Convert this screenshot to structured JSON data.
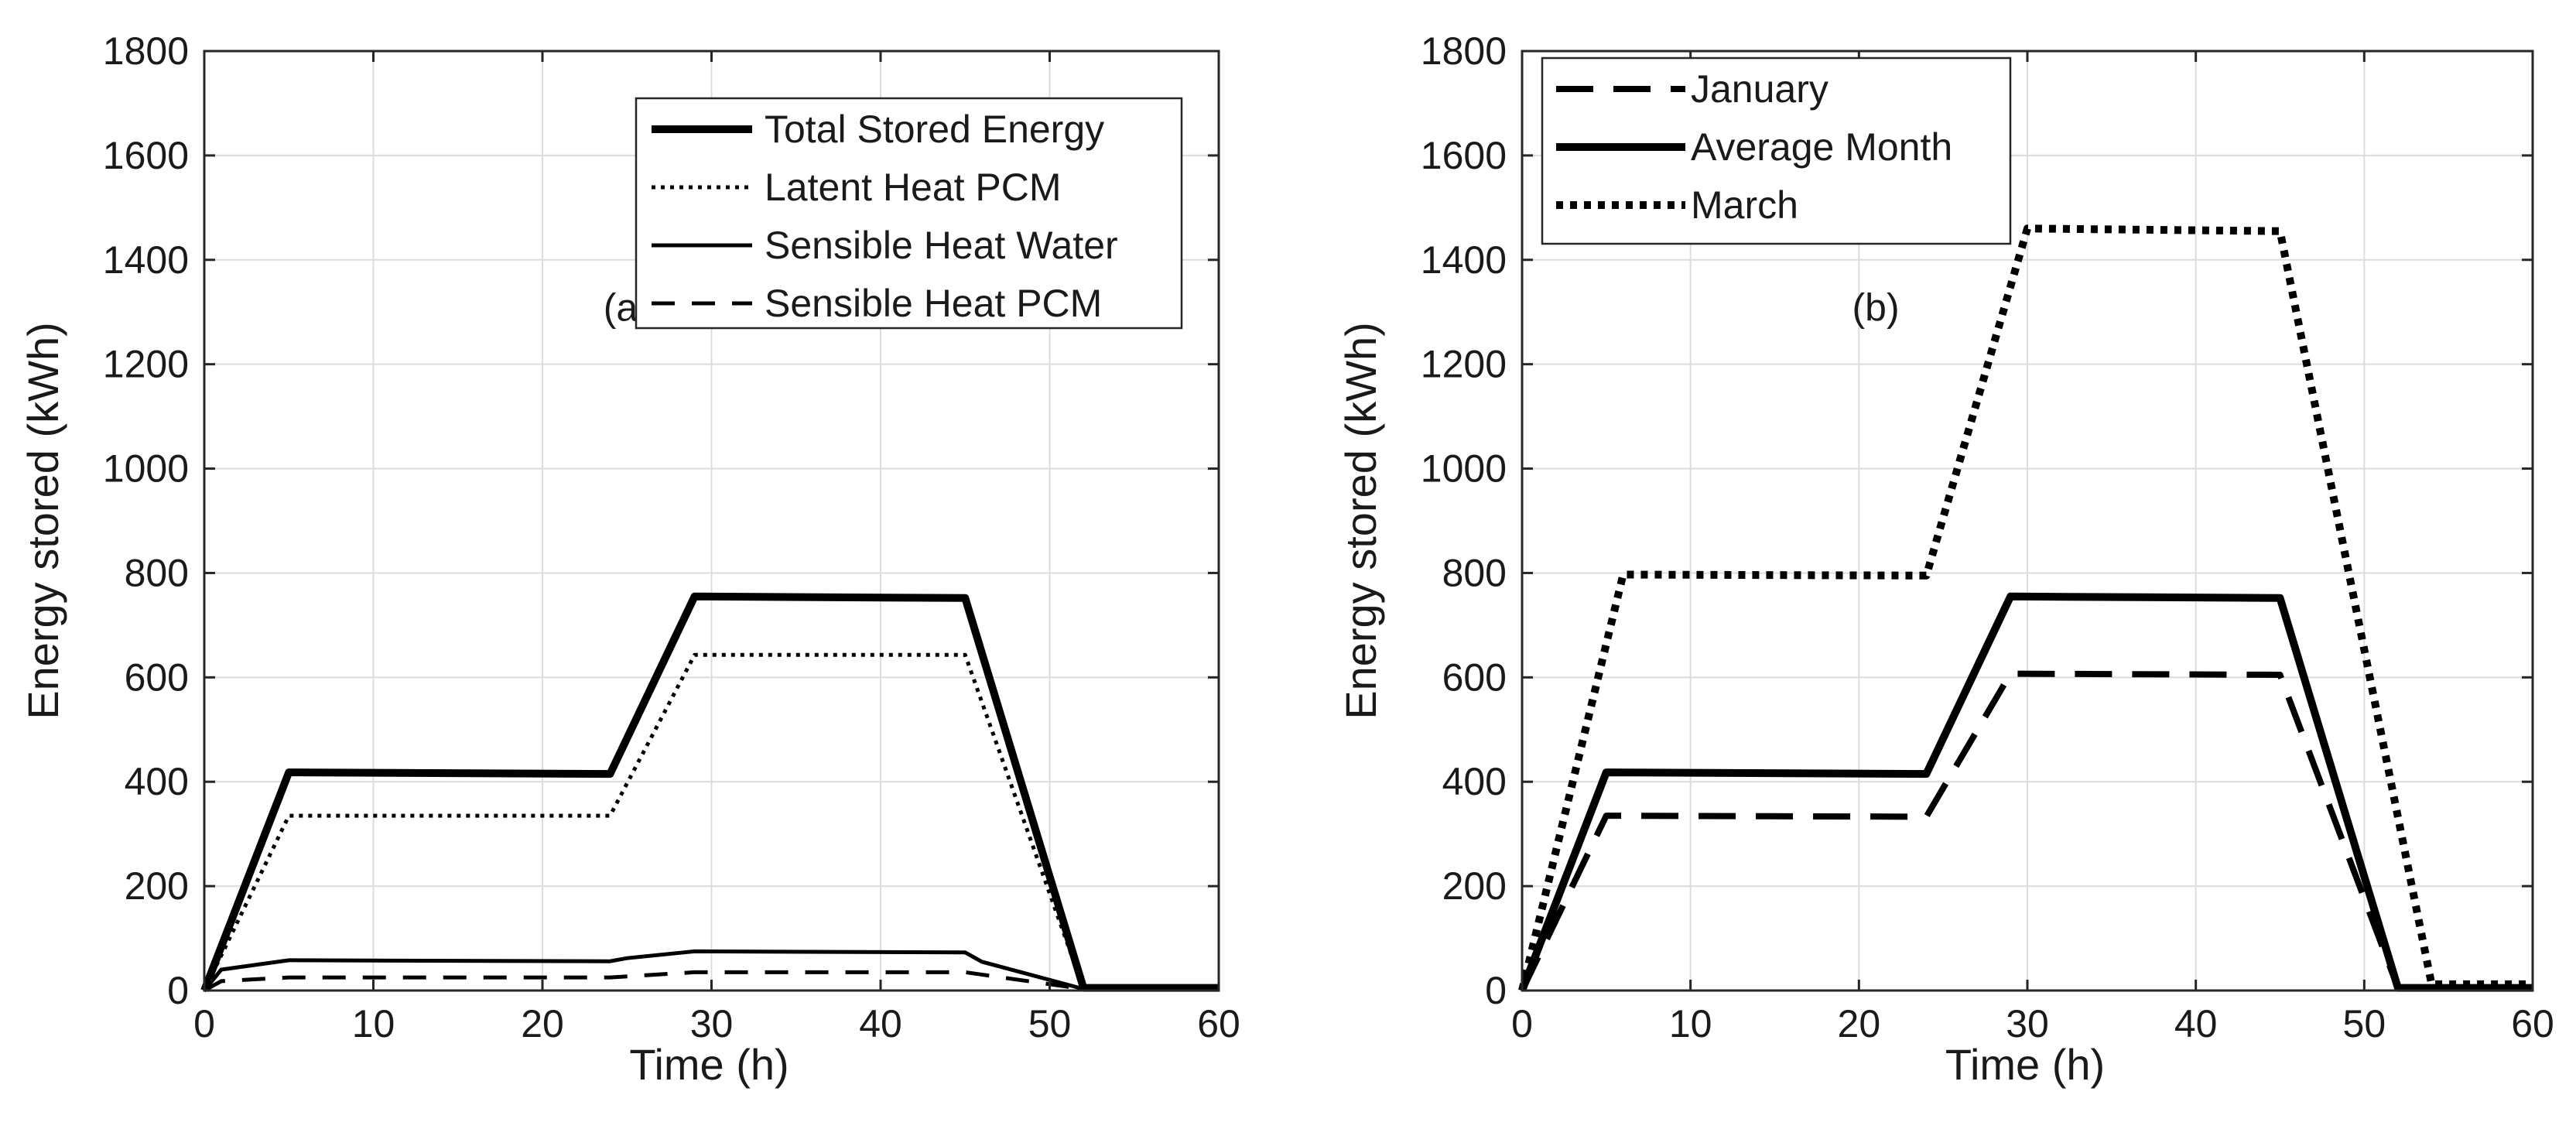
{
  "chart_data": [
    {
      "id": "a",
      "type": "line",
      "panel_label": "(a)",
      "panel_label_pos": [
        25,
        1310
      ],
      "xlabel": "Time (h)",
      "ylabel": "Energy stored (kWh)",
      "xlim": [
        0,
        60
      ],
      "ylim": [
        0,
        1800
      ],
      "xticks": [
        0,
        10,
        20,
        30,
        40,
        50,
        60
      ],
      "yticks": [
        0,
        200,
        400,
        600,
        800,
        1000,
        1200,
        1400,
        1600,
        1800
      ],
      "grid": true,
      "legend_position": "top-right",
      "series": [
        {
          "name": "Total Stored Energy",
          "style": "solid-thick",
          "x": [
            0,
            5,
            24,
            29,
            45,
            52,
            60
          ],
          "y": [
            0,
            418,
            415,
            755,
            752,
            5,
            5
          ]
        },
        {
          "name": "Latent Heat PCM",
          "style": "dotted",
          "x": [
            0,
            5,
            24,
            29,
            45,
            52,
            60
          ],
          "y": [
            0,
            335,
            335,
            643,
            643,
            3,
            3
          ]
        },
        {
          "name": "Sensible Heat Water",
          "style": "solid-thin",
          "x": [
            0,
            1,
            5,
            24,
            25,
            29,
            45,
            46,
            52,
            60
          ],
          "y": [
            0,
            40,
            58,
            56,
            62,
            75,
            73,
            55,
            3,
            3
          ]
        },
        {
          "name": "Sensible Heat PCM",
          "style": "dashed",
          "x": [
            0,
            1,
            5,
            24,
            29,
            45,
            52,
            60
          ],
          "y": [
            0,
            18,
            25,
            25,
            35,
            35,
            3,
            3
          ]
        }
      ]
    },
    {
      "id": "b",
      "type": "line",
      "panel_label": "(b)",
      "panel_label_pos": [
        21,
        1310
      ],
      "xlabel": "Time (h)",
      "ylabel": "Energy stored (kWh)",
      "xlim": [
        0,
        60
      ],
      "ylim": [
        0,
        1800
      ],
      "xticks": [
        0,
        10,
        20,
        30,
        40,
        50,
        60
      ],
      "yticks": [
        0,
        200,
        400,
        600,
        800,
        1000,
        1200,
        1400,
        1600,
        1800
      ],
      "grid": true,
      "legend_position": "top-left",
      "series": [
        {
          "name": "January",
          "style": "dashed-thick",
          "x": [
            0,
            5,
            24,
            29,
            45,
            52,
            60
          ],
          "y": [
            0,
            335,
            333,
            607,
            605,
            5,
            5
          ]
        },
        {
          "name": "Average Month",
          "style": "solid-thick",
          "x": [
            0,
            5,
            24,
            29,
            45,
            52,
            60
          ],
          "y": [
            0,
            418,
            415,
            755,
            752,
            5,
            5
          ]
        },
        {
          "name": "March",
          "style": "dotted-thick",
          "x": [
            0,
            6,
            24,
            30,
            45,
            54,
            60
          ],
          "y": [
            0,
            797,
            795,
            1460,
            1455,
            12,
            12
          ]
        }
      ]
    }
  ]
}
